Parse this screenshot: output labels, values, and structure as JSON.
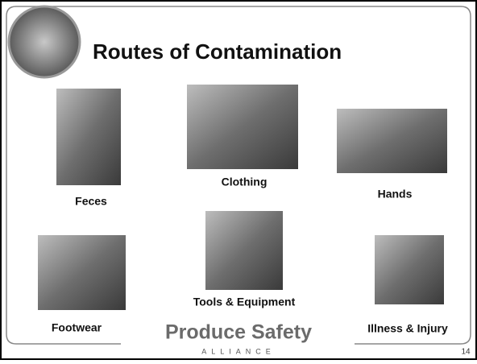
{
  "slide": {
    "title": "Routes of Contamination",
    "items": [
      {
        "label": "Feces"
      },
      {
        "label": "Clothing"
      },
      {
        "label": "Hands"
      },
      {
        "label": "Footwear"
      },
      {
        "label": "Tools & Equipment"
      },
      {
        "label": "Illness & Injury"
      }
    ],
    "logo": {
      "name": "Produce Safety",
      "sub": "ALLIANCE"
    },
    "page_number": "14"
  }
}
